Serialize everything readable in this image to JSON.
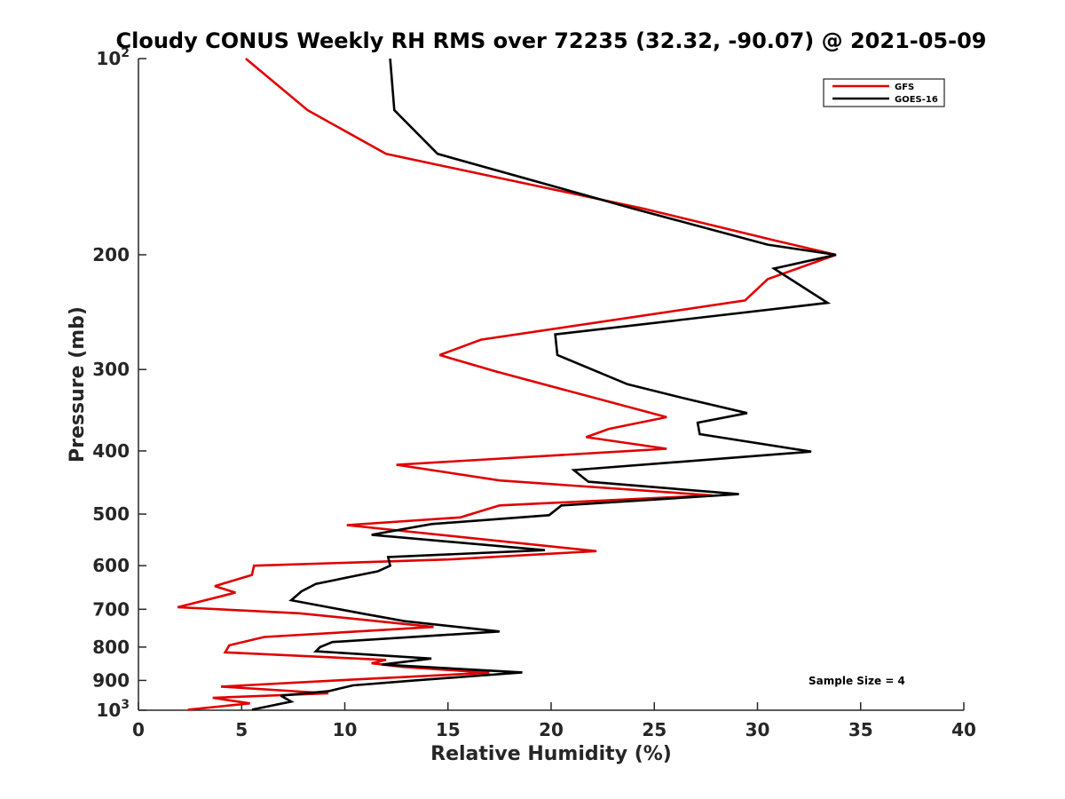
{
  "chart_data": {
    "type": "line",
    "title": "Cloudy CONUS Weekly RH RMS over 72235 (32.32, -90.07) @ 2021-05-09",
    "xlabel": "Relative Humidity (%)",
    "ylabel": "Pressure (mb)",
    "xlim": [
      0,
      40
    ],
    "ylim": [
      100,
      1000
    ],
    "yscale": "log",
    "y_reversed": true,
    "xticks": [
      0,
      5,
      10,
      15,
      20,
      25,
      30,
      35,
      40
    ],
    "yticks": [
      {
        "value": 100,
        "label": "10",
        "sup": "2"
      },
      {
        "value": 200,
        "label": "200"
      },
      {
        "value": 300,
        "label": "300"
      },
      {
        "value": 400,
        "label": "400"
      },
      {
        "value": 500,
        "label": "500"
      },
      {
        "value": 600,
        "label": "600"
      },
      {
        "value": 700,
        "label": "700"
      },
      {
        "value": 800,
        "label": "800"
      },
      {
        "value": 900,
        "label": "900"
      },
      {
        "value": 1000,
        "label": "10",
        "sup": "3"
      }
    ],
    "legend_position": "top-right",
    "annotation": "Sample Size = 4",
    "series": [
      {
        "name": "GFS",
        "color": "#e00000",
        "points": [
          [
            5.2,
            100
          ],
          [
            8.2,
            120
          ],
          [
            12.0,
            140
          ],
          [
            24.5,
            170
          ],
          [
            30.8,
            190
          ],
          [
            33.8,
            200
          ],
          [
            30.5,
            218
          ],
          [
            29.4,
            235
          ],
          [
            16.6,
            270
          ],
          [
            14.6,
            285
          ],
          [
            17.3,
            302
          ],
          [
            25.6,
            355
          ],
          [
            22.8,
            370
          ],
          [
            21.7,
            381
          ],
          [
            25.6,
            397
          ],
          [
            12.5,
            420
          ],
          [
            17.5,
            444
          ],
          [
            27.8,
            468
          ],
          [
            17.5,
            485
          ],
          [
            15.6,
            506
          ],
          [
            10.1,
            520
          ],
          [
            22.2,
            570
          ],
          [
            15.0,
            587
          ],
          [
            5.6,
            600
          ],
          [
            5.5,
            620
          ],
          [
            3.7,
            645
          ],
          [
            4.7,
            660
          ],
          [
            1.9,
            695
          ],
          [
            7.8,
            710
          ],
          [
            14.3,
            745
          ],
          [
            6.1,
            772
          ],
          [
            4.4,
            795
          ],
          [
            4.2,
            815
          ],
          [
            12.0,
            837
          ],
          [
            11.3,
            847
          ],
          [
            12.8,
            858
          ],
          [
            17.0,
            876
          ],
          [
            9.6,
            900
          ],
          [
            4.0,
            920
          ],
          [
            9.2,
            942
          ],
          [
            3.6,
            957
          ],
          [
            5.4,
            976
          ],
          [
            2.4,
            998
          ]
        ]
      },
      {
        "name": "GOES-16",
        "color": "#000000",
        "points": [
          [
            12.2,
            100
          ],
          [
            12.4,
            120
          ],
          [
            14.5,
            140
          ],
          [
            24.0,
            170
          ],
          [
            30.5,
            193
          ],
          [
            33.8,
            200
          ],
          [
            30.8,
            210
          ],
          [
            33.4,
            237
          ],
          [
            20.2,
            265
          ],
          [
            20.3,
            285
          ],
          [
            23.7,
            316
          ],
          [
            26.6,
            333
          ],
          [
            29.5,
            350
          ],
          [
            27.1,
            362
          ],
          [
            27.2,
            377
          ],
          [
            32.6,
            401
          ],
          [
            21.1,
            428
          ],
          [
            21.8,
            446
          ],
          [
            29.1,
            466
          ],
          [
            20.5,
            485
          ],
          [
            19.9,
            502
          ],
          [
            14.2,
            518
          ],
          [
            11.3,
            538
          ],
          [
            19.7,
            568
          ],
          [
            12.1,
            582
          ],
          [
            12.2,
            600
          ],
          [
            11.6,
            612
          ],
          [
            8.6,
            640
          ],
          [
            7.9,
            657
          ],
          [
            7.4,
            678
          ],
          [
            10.9,
            711
          ],
          [
            12.9,
            730
          ],
          [
            17.5,
            757
          ],
          [
            9.4,
            786
          ],
          [
            8.8,
            800
          ],
          [
            8.6,
            812
          ],
          [
            14.2,
            833
          ],
          [
            11.8,
            851
          ],
          [
            18.6,
            875
          ],
          [
            13.4,
            900
          ],
          [
            10.4,
            916
          ],
          [
            9.2,
            935
          ],
          [
            6.9,
            950
          ],
          [
            7.4,
            970
          ],
          [
            5.5,
            998
          ]
        ]
      }
    ]
  }
}
